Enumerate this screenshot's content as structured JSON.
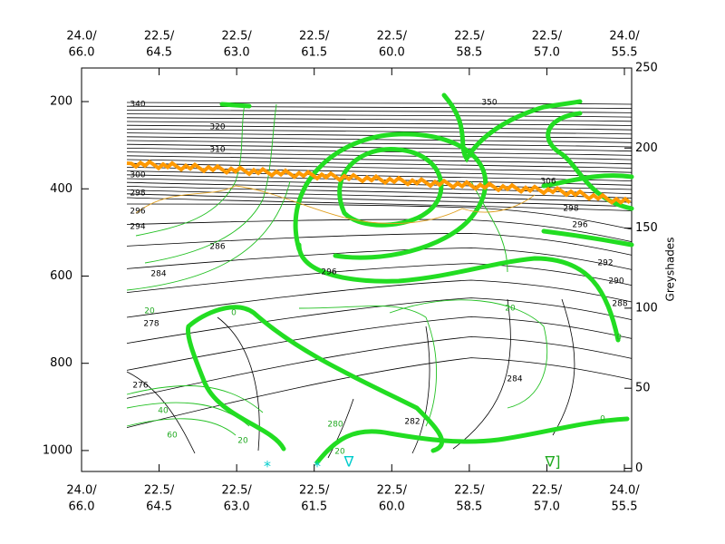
{
  "chart_data": {
    "type": "contour",
    "ylim": [
      1048,
      123
    ],
    "yticks": [
      200,
      400,
      600,
      800,
      1000
    ],
    "y2label": "Greyshades",
    "y2lim": [
      -2,
      250
    ],
    "y2ticks": [
      0,
      50,
      100,
      150,
      200,
      250
    ],
    "xlim": [
      66.0,
      55.36
    ],
    "xticks": [
      {
        "value": 66,
        "label": "66.0"
      },
      {
        "value": 64.5,
        "label": "64.5"
      },
      {
        "value": 63,
        "label": "63.0"
      },
      {
        "value": 61.5,
        "label": "61.5"
      },
      {
        "value": 60,
        "label": "60.0"
      },
      {
        "value": 58.5,
        "label": "58.5"
      },
      {
        "value": 57,
        "label": "57.0"
      },
      {
        "value": 55.5,
        "label": "55.5"
      }
    ],
    "lat_labels": [
      "24.0/",
      "22.5/",
      "22.5/",
      "22.5/",
      "22.5/",
      "22.5/",
      "22.5/",
      "24.0/"
    ],
    "contour_labels": [
      "350",
      "340",
      "320",
      "310",
      "306",
      "300",
      "298",
      "296",
      "294",
      "286",
      "284",
      "278",
      "276",
      "298",
      "296",
      "292",
      "290",
      "288",
      "296",
      "282",
      "284",
      "0",
      "20",
      "20",
      "40",
      "60",
      "20",
      "0",
      "0",
      "280",
      "20"
    ],
    "markers": [
      "*",
      "*",
      "∇",
      "∇]"
    ]
  }
}
